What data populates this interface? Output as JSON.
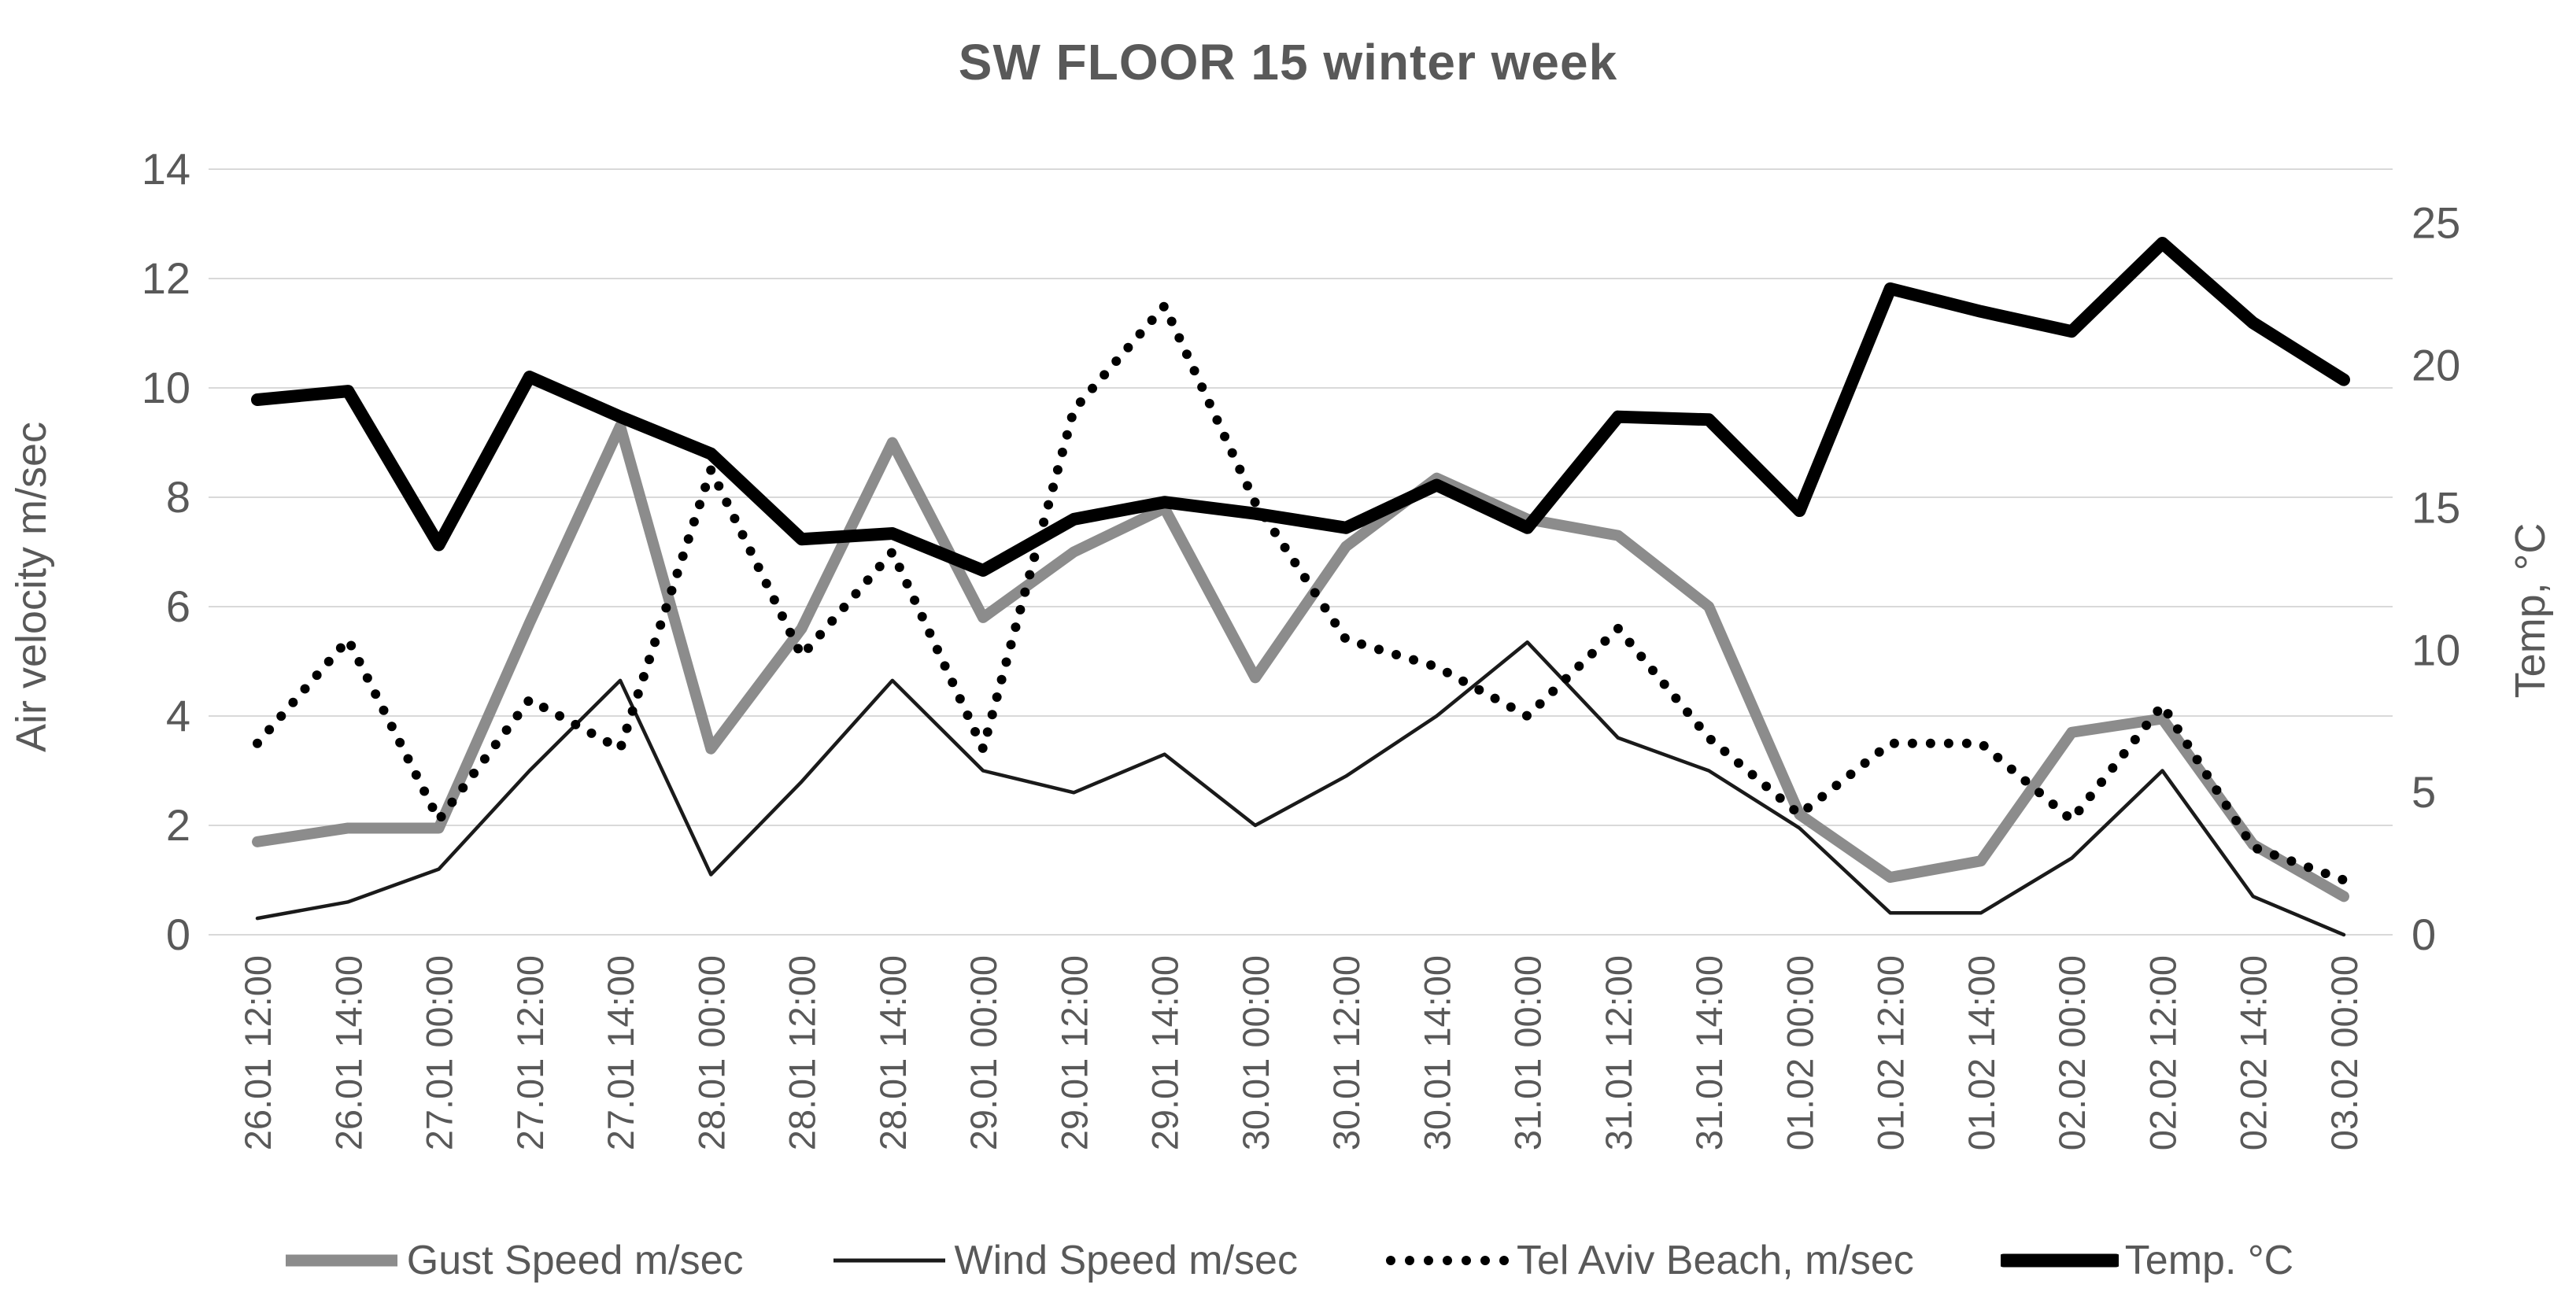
{
  "chart_data": {
    "type": "line",
    "title": "SW FLOOR 15 winter week",
    "grid": "horizontal",
    "legend_position": "bottom",
    "left_axis": {
      "label": "Air velocity m/sec",
      "ticks": [
        0,
        2,
        4,
        6,
        8,
        10,
        12,
        14
      ],
      "min": 0,
      "max": 14
    },
    "right_axis": {
      "label": "Temp, °C",
      "ticks": [
        0,
        5,
        10,
        15,
        20,
        25
      ],
      "min": 0,
      "max": 26.9
    },
    "categories": [
      "26.01 12:00",
      "26.01 14:00",
      "27.01 00:00",
      "27.01 12:00",
      "27.01 14:00",
      "28.01 00:00",
      "28.01 12:00",
      "28.01 14:00",
      "29.01 00:00",
      "29.01 12:00",
      "29.01 14:00",
      "30.01 00:00",
      "30.01 12:00",
      "30.01 14:00",
      "31.01 00:00",
      "31.01 12:00",
      "31.01 14:00",
      "01.02 00:00",
      "01.02 12:00",
      "01.02 14:00",
      "02.02 00:00",
      "02.02 12:00",
      "02.02 14:00",
      "03.02 00:00"
    ],
    "series": [
      {
        "name": "Gust Speed m/sec",
        "axis": "left",
        "style": "solid",
        "color": "#8c8c8c",
        "width": 14,
        "values": [
          1.7,
          1.95,
          1.95,
          5.7,
          9.3,
          3.4,
          5.6,
          9.0,
          5.8,
          7.0,
          7.8,
          4.7,
          7.1,
          8.35,
          7.6,
          7.3,
          6.0,
          2.2,
          1.05,
          1.35,
          3.7,
          3.95,
          1.65,
          0.7
        ]
      },
      {
        "name": "Wind Speed m/sec",
        "axis": "left",
        "style": "solid",
        "color": "#1a1a1a",
        "width": 4.5,
        "values": [
          0.3,
          0.6,
          1.2,
          3.0,
          4.65,
          1.1,
          2.8,
          4.65,
          3.0,
          2.6,
          3.3,
          2.0,
          2.9,
          4.0,
          5.35,
          3.6,
          3.0,
          1.95,
          0.4,
          0.4,
          1.4,
          3.0,
          0.7,
          0.0
        ]
      },
      {
        "name": "Tel Aviv Beach, m/sec",
        "axis": "left",
        "style": "dotted",
        "color": "#000000",
        "width": 12,
        "values": [
          3.5,
          5.4,
          2.1,
          4.3,
          3.4,
          8.5,
          5.1,
          7.0,
          3.4,
          9.6,
          11.5,
          7.9,
          5.4,
          4.9,
          4.0,
          5.6,
          3.6,
          2.2,
          3.5,
          3.5,
          2.1,
          4.2,
          1.6,
          1.0
        ]
      },
      {
        "name": "Temp. °C",
        "axis": "right",
        "style": "solid",
        "color": "#000000",
        "width": 16,
        "values": [
          18.8,
          19.1,
          13.7,
          19.6,
          18.2,
          16.9,
          13.9,
          14.1,
          12.8,
          14.6,
          15.2,
          14.8,
          14.3,
          15.8,
          14.3,
          18.2,
          18.1,
          14.9,
          22.7,
          21.9,
          21.2,
          24.3,
          21.5,
          19.5
        ]
      }
    ],
    "colors": {
      "gridline": "#d9d9d9",
      "tick_text": "#595959",
      "title_text": "#595959"
    }
  }
}
